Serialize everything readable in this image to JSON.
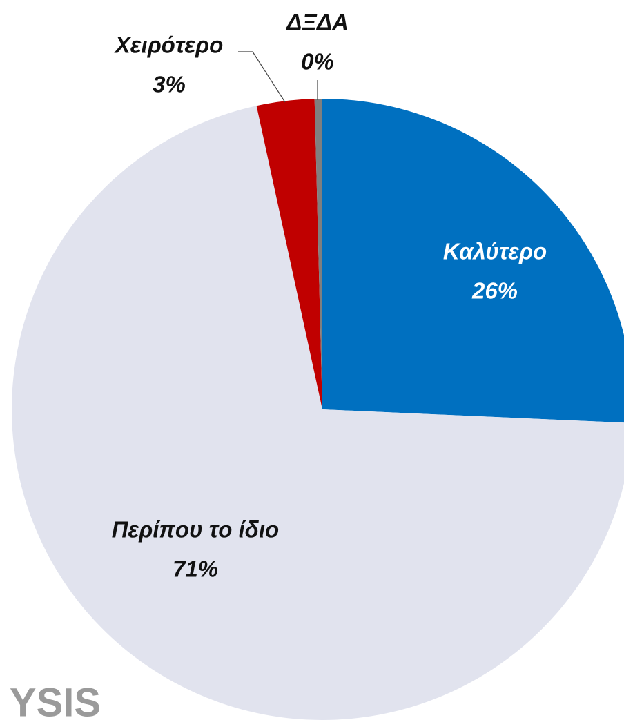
{
  "chart_data": {
    "type": "pie",
    "categories": [
      "Καλύτερο",
      "Περίπου το ίδιο",
      "Χειρότερο",
      "ΔΞΔΑ"
    ],
    "values": [
      25.7,
      70.9,
      3.0,
      0.4
    ],
    "value_labels": [
      "26%",
      "71%",
      "3%",
      "0%"
    ],
    "colors": [
      "#0070c0",
      "#e1e3ee",
      "#c00000",
      "#7f7f7f"
    ],
    "logo": "YSIS"
  }
}
